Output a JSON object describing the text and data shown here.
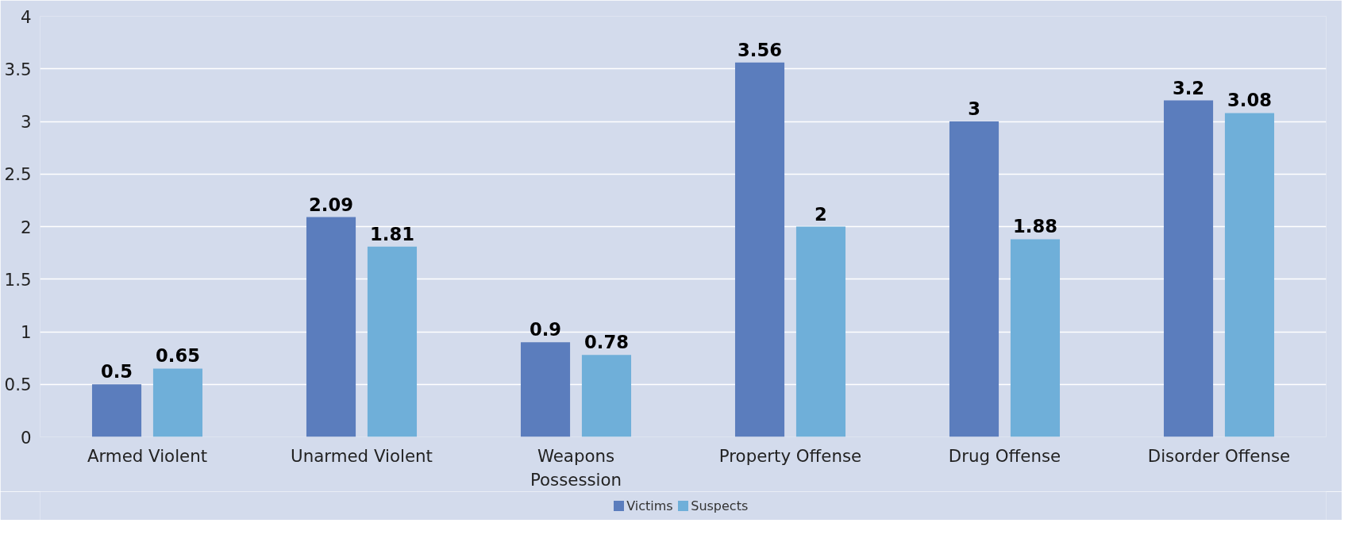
{
  "chart_data": {
    "type": "bar",
    "categories": [
      "Armed Violent",
      "Unarmed Violent",
      "Weapons Possession",
      "Property Offense",
      "Drug Offense",
      "Disorder Offense"
    ],
    "series": [
      {
        "name": "Victims",
        "color": "#5b7dbd",
        "values": [
          0.5,
          2.09,
          0.9,
          3.56,
          3,
          3.2
        ]
      },
      {
        "name": "Suspects",
        "color": "#6fafd9",
        "values": [
          0.65,
          1.81,
          0.78,
          2,
          1.88,
          3.08
        ]
      }
    ],
    "ylim": [
      0,
      4
    ],
    "yticks": [
      0,
      0.5,
      1,
      1.5,
      2,
      2.5,
      3,
      3.5,
      4
    ],
    "grid": "y",
    "legend": "bottom",
    "data_labels": true
  }
}
